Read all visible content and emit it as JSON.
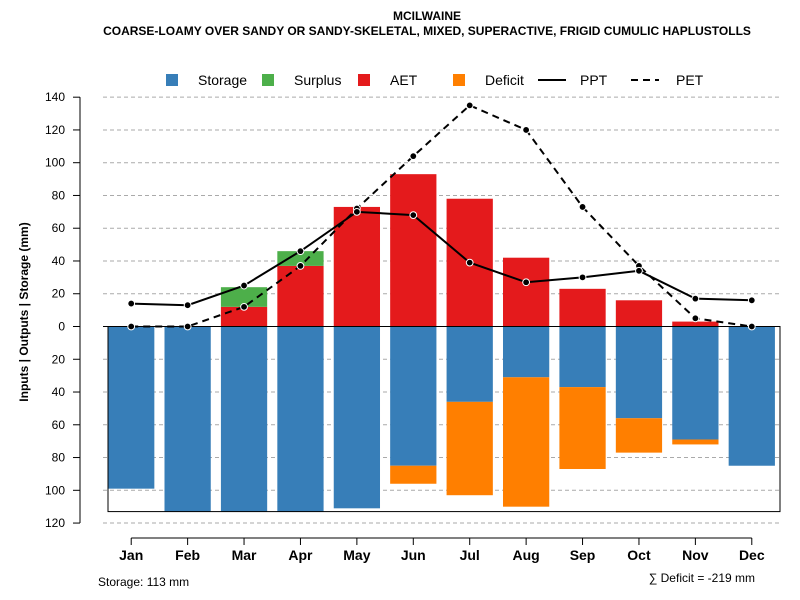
{
  "chart_data": {
    "type": "bar",
    "title": "MCILWAINE",
    "subtitle": "COARSE-LOAMY OVER SANDY OR SANDY-SKELETAL, MIXED, SUPERACTIVE, FRIGID CUMULIC HAPLUSTOLLS",
    "ylabel": "Inputs | Outputs | Storage    (mm)",
    "ylim": [
      -120,
      140
    ],
    "yticks": [
      140,
      120,
      100,
      80,
      60,
      40,
      20,
      0,
      -20,
      -40,
      -60,
      -80,
      -100,
      -120
    ],
    "grid": true,
    "legend_position": "top",
    "categories": [
      "Jan",
      "Feb",
      "Mar",
      "Apr",
      "May",
      "Jun",
      "Jul",
      "Aug",
      "Sep",
      "Oct",
      "Nov",
      "Dec"
    ],
    "series": [
      {
        "name": "Storage",
        "color": "#377eb8",
        "values": [
          -99,
          -113,
          -113,
          -113,
          -111,
          -85,
          -46,
          -31,
          -37,
          -56,
          -69,
          -85
        ]
      },
      {
        "name": "Surplus",
        "color": "#4daf4a",
        "values": [
          0,
          0,
          12,
          9,
          0,
          0,
          0,
          0,
          0,
          0,
          0,
          0
        ]
      },
      {
        "name": "AET",
        "color": "#e41a1c",
        "values": [
          0,
          0,
          12,
          37,
          73,
          93,
          78,
          42,
          23,
          16,
          3,
          0
        ]
      },
      {
        "name": "Deficit",
        "color": "#ff7f00",
        "values": [
          0,
          0,
          0,
          0,
          0,
          -11,
          -57,
          -79,
          -50,
          -21,
          -3,
          0
        ]
      },
      {
        "name": "PPT",
        "color": "#000000",
        "style": "solid",
        "values": [
          14,
          13,
          25,
          46,
          70,
          68,
          39,
          27,
          30,
          34,
          17,
          16
        ]
      },
      {
        "name": "PET",
        "color": "#000000",
        "style": "dashed",
        "values": [
          0,
          0,
          12,
          37,
          72,
          104,
          135,
          120,
          73,
          37,
          5,
          0
        ]
      }
    ],
    "storage_capacity": 113,
    "footer_storage": "Storage: 113 mm",
    "footer_deficit": "∑ Deficit = -219 mm"
  }
}
